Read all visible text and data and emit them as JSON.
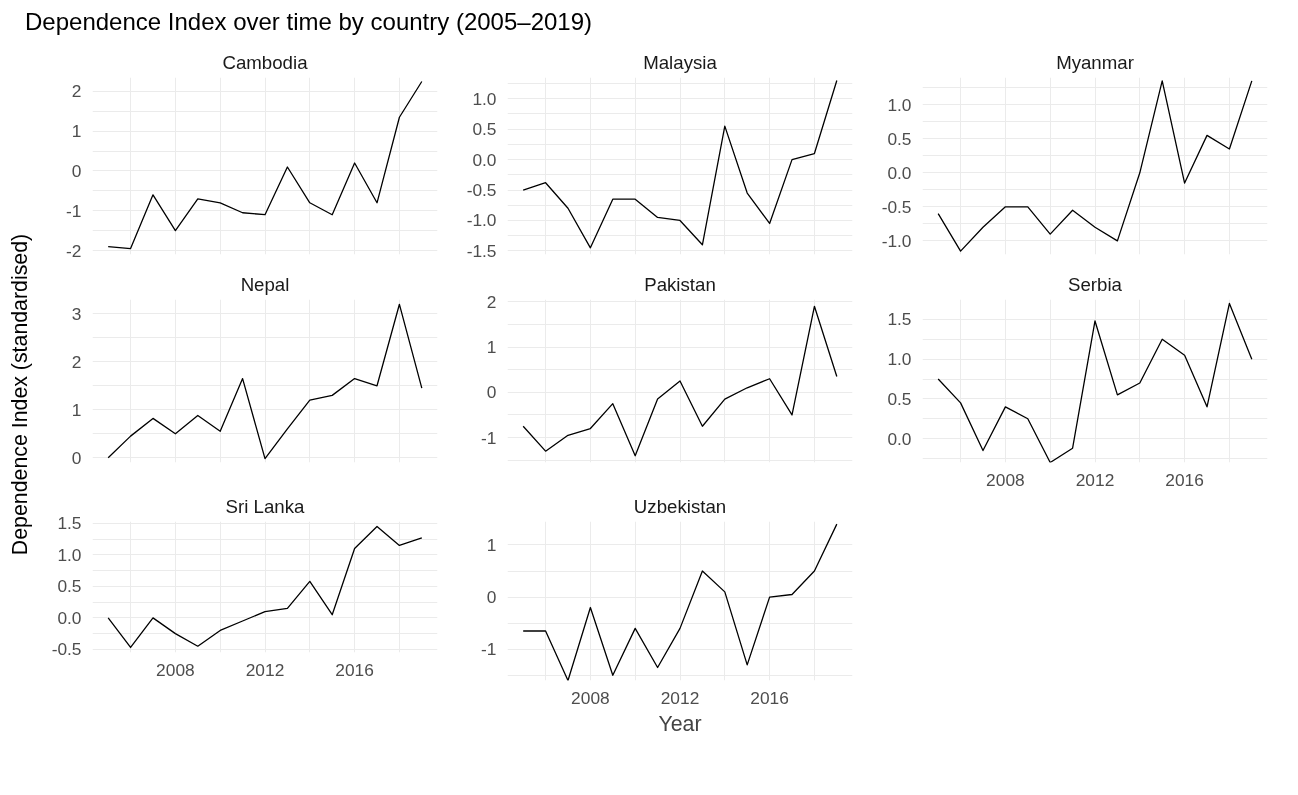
{
  "chart_data": [
    {
      "type": "line",
      "title": "Cambodia",
      "annotations": [
        "Dependence Index over time by country (2005–2019)"
      ],
      "x": [
        2005,
        2006,
        2007,
        2008,
        2009,
        2010,
        2011,
        2012,
        2013,
        2014,
        2015,
        2016,
        2017,
        2018,
        2019
      ],
      "series": [
        {
          "color": "#000000",
          "values": [
            -1.9,
            -1.95,
            -0.6,
            -1.5,
            -0.7,
            -0.8,
            -1.05,
            -1.1,
            0.1,
            -0.8,
            -1.1,
            0.2,
            -0.8,
            1.35,
            2.25
          ]
        }
      ],
      "xlim": [
        2004.3,
        2019.7
      ],
      "xticks": [
        2008,
        2012,
        2016
      ],
      "ylim": [
        -2.1,
        2.35
      ],
      "yticks": [
        -2,
        -1,
        0,
        1,
        2
      ],
      "grid": true,
      "tick_labels": "y"
    },
    {
      "type": "line",
      "title": "Malaysia",
      "x": [
        2005,
        2006,
        2007,
        2008,
        2009,
        2010,
        2011,
        2012,
        2013,
        2014,
        2015,
        2016,
        2017,
        2018,
        2019
      ],
      "series": [
        {
          "color": "#000000",
          "values": [
            -0.5,
            -0.38,
            -0.8,
            -1.45,
            -0.65,
            -0.65,
            -0.95,
            -1.0,
            -1.4,
            0.55,
            -0.55,
            -1.05,
            0.0,
            0.1,
            1.3
          ]
        }
      ],
      "xlim": [
        2004.3,
        2019.7
      ],
      "xticks": [
        2008,
        2012,
        2016
      ],
      "ylim": [
        -1.56,
        1.35
      ],
      "yticks": [
        -1.5,
        {
          "value": -1,
          "label": "-1.0"
        },
        -0.5,
        {
          "value": 0,
          "label": "0.0"
        },
        0.5,
        {
          "value": 1,
          "label": "1.0"
        }
      ],
      "grid": true,
      "tick_labels": "y"
    },
    {
      "type": "line",
      "title": "Myanmar",
      "x": [
        2005,
        2006,
        2007,
        2008,
        2009,
        2010,
        2011,
        2012,
        2013,
        2014,
        2015,
        2016,
        2017,
        2018,
        2019
      ],
      "series": [
        {
          "color": "#000000",
          "values": [
            -0.6,
            -1.15,
            -0.8,
            -0.5,
            -0.5,
            -0.9,
            -0.55,
            -0.8,
            -1.0,
            0.0,
            1.35,
            -0.15,
            0.55,
            0.35,
            1.35
          ]
        }
      ],
      "xlim": [
        2004.3,
        2019.7
      ],
      "xticks": [
        2008,
        2012,
        2016
      ],
      "ylim": [
        -1.2,
        1.4
      ],
      "yticks": [
        {
          "value": -1,
          "label": "-1.0"
        },
        -0.5,
        {
          "value": 0,
          "label": "0.0"
        },
        0.5,
        {
          "value": 1,
          "label": "1.0"
        }
      ],
      "grid": true,
      "tick_labels": "y"
    },
    {
      "type": "line",
      "title": "Nepal",
      "ylabel": "Dependence Index (standardised)",
      "x": [
        2005,
        2006,
        2007,
        2008,
        2009,
        2010,
        2011,
        2012,
        2013,
        2014,
        2015,
        2016,
        2017,
        2018,
        2019
      ],
      "series": [
        {
          "color": "#000000",
          "values": [
            0.0,
            0.45,
            0.82,
            0.5,
            0.88,
            0.55,
            1.65,
            -0.02,
            0.6,
            1.2,
            1.3,
            1.65,
            1.5,
            3.2,
            1.45
          ]
        }
      ],
      "xlim": [
        2004.3,
        2019.7
      ],
      "xticks": [
        2008,
        2012,
        2016
      ],
      "ylim": [
        -0.1,
        3.3
      ],
      "yticks": [
        0,
        1,
        2,
        3
      ],
      "grid": true,
      "tick_labels": "y"
    },
    {
      "type": "line",
      "title": "Pakistan",
      "x": [
        2005,
        2006,
        2007,
        2008,
        2009,
        2010,
        2011,
        2012,
        2013,
        2014,
        2015,
        2016,
        2017,
        2018,
        2019
      ],
      "series": [
        {
          "color": "#000000",
          "values": [
            -0.75,
            -1.3,
            -0.95,
            -0.8,
            -0.25,
            -1.4,
            -0.15,
            0.25,
            -0.75,
            -0.15,
            0.1,
            0.3,
            -0.5,
            1.9,
            0.35
          ]
        }
      ],
      "xlim": [
        2004.3,
        2019.7
      ],
      "xticks": [
        2008,
        2012,
        2016
      ],
      "ylim": [
        -1.55,
        2.05
      ],
      "yticks": [
        -1,
        0,
        1,
        2
      ],
      "grid": true,
      "tick_labels": "y"
    },
    {
      "type": "line",
      "title": "Serbia",
      "x": [
        2005,
        2006,
        2007,
        2008,
        2009,
        2010,
        2011,
        2012,
        2013,
        2014,
        2015,
        2016,
        2017,
        2018,
        2019
      ],
      "series": [
        {
          "color": "#000000",
          "values": [
            0.75,
            0.45,
            -0.15,
            0.4,
            0.25,
            -0.3,
            -0.12,
            1.48,
            0.55,
            0.7,
            1.25,
            1.05,
            0.4,
            1.7,
            1.0
          ]
        }
      ],
      "xlim": [
        2004.3,
        2019.7
      ],
      "xticks": [
        2008,
        2012,
        2016
      ],
      "ylim": [
        -0.3,
        1.75
      ],
      "yticks": [
        {
          "value": 0,
          "label": "0.0"
        },
        0.5,
        {
          "value": 1,
          "label": "1.0"
        },
        1.5
      ],
      "grid": true
    },
    {
      "type": "line",
      "title": "Sri Lanka",
      "x": [
        2005,
        2006,
        2007,
        2008,
        2009,
        2010,
        2011,
        2012,
        2013,
        2014,
        2015,
        2016,
        2017,
        2018,
        2019
      ],
      "series": [
        {
          "color": "#000000",
          "values": [
            0.0,
            -0.47,
            0.0,
            -0.25,
            -0.45,
            -0.2,
            -0.05,
            0.1,
            0.15,
            0.58,
            0.05,
            1.1,
            1.45,
            1.15,
            1.27
          ]
        }
      ],
      "xlim": [
        2004.3,
        2019.7
      ],
      "xticks": [
        2008,
        2012,
        2016
      ],
      "ylim": [
        -0.55,
        1.53
      ],
      "yticks": [
        -0.5,
        {
          "value": 0,
          "label": "0.0"
        },
        0.5,
        {
          "value": 1,
          "label": "1.0"
        },
        1.5
      ],
      "grid": true
    },
    {
      "type": "line",
      "title": "Uzbekistan",
      "xlabel": "Year",
      "x": [
        2005,
        2006,
        2007,
        2008,
        2009,
        2010,
        2011,
        2012,
        2013,
        2014,
        2015,
        2016,
        2017,
        2018,
        2019
      ],
      "series": [
        {
          "color": "#000000",
          "values": [
            -0.65,
            -0.65,
            -1.6,
            -0.2,
            -1.5,
            -0.6,
            -1.35,
            -0.6,
            0.5,
            0.1,
            -1.3,
            0.0,
            0.05,
            0.5,
            1.4
          ]
        }
      ],
      "xlim": [
        2004.3,
        2019.7
      ],
      "xticks": [
        2008,
        2012,
        2016
      ],
      "ylim": [
        -1.6,
        1.45
      ],
      "yticks": [
        -1,
        0,
        1
      ],
      "grid": true
    }
  ]
}
